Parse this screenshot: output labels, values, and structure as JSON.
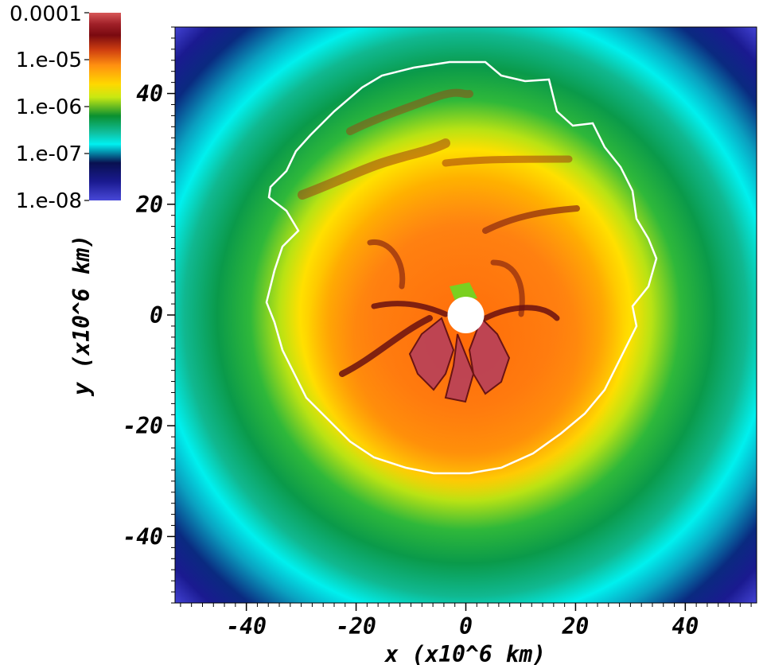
{
  "chart_data": {
    "type": "heatmap",
    "title": "",
    "xlabel": "x (x10^6 km)",
    "ylabel": "y (x10^6 km)",
    "xlim": [
      -53,
      53
    ],
    "ylim": [
      -52,
      52
    ],
    "x_ticks": [
      -40,
      -20,
      0,
      20,
      40
    ],
    "y_ticks": [
      40,
      20,
      0,
      -20,
      -40
    ],
    "x_tick_labels": [
      "-40",
      "-20",
      "0",
      "20",
      "40"
    ],
    "y_tick_labels": [
      "40",
      "20",
      "0",
      "-20",
      "-40"
    ],
    "colorbar": {
      "scale": "log",
      "range": [
        1e-08,
        0.0001
      ],
      "tick_values": [
        0.0001,
        1e-05,
        1e-06,
        1e-07,
        1e-08
      ],
      "tick_labels": [
        "0.0001",
        "1.e-05",
        "1.e-06",
        "1.e-07",
        "1.e-08"
      ],
      "placement": "top-left",
      "colors": [
        "#3a3ad0",
        "#0a1a70",
        "#00f0ee",
        "#0a9a3c",
        "#c8e616",
        "#ffd000",
        "#ff8c10",
        "#b83a0a",
        "#7a0f16",
        "#d04a52"
      ]
    },
    "features": {
      "central_hole_radius": 3,
      "contour_color": "#ffffff"
    }
  }
}
